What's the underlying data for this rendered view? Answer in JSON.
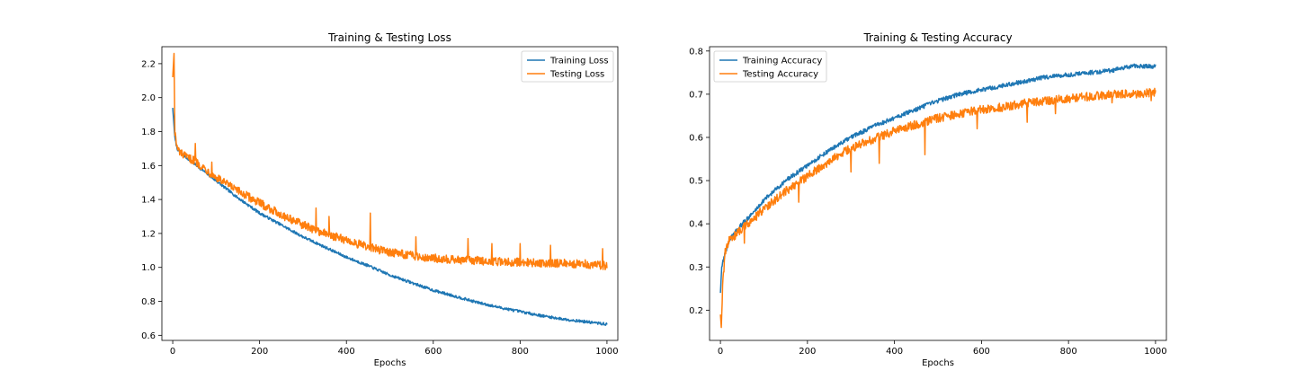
{
  "chart_data": [
    {
      "type": "line",
      "title": "Training & Testing Loss",
      "xlabel": "Epochs",
      "ylabel": "",
      "xlim": [
        -25,
        1025
      ],
      "ylim": [
        0.57,
        2.3
      ],
      "xticks": [
        0,
        200,
        400,
        600,
        800,
        1000
      ],
      "yticks": [
        0.6,
        0.8,
        1.0,
        1.2,
        1.4,
        1.6,
        1.8,
        2.0,
        2.2
      ],
      "tick_decimals": 1,
      "legend": "top-right",
      "grid": false,
      "series": [
        {
          "name": "Training Loss",
          "color": "#1f77b4",
          "x": [
            0,
            5,
            10,
            20,
            30,
            50,
            75,
            100,
            150,
            200,
            250,
            300,
            350,
            400,
            450,
            500,
            550,
            600,
            650,
            700,
            750,
            800,
            850,
            900,
            950,
            1000
          ],
          "y": [
            1.94,
            1.76,
            1.7,
            1.67,
            1.65,
            1.61,
            1.56,
            1.51,
            1.41,
            1.32,
            1.25,
            1.18,
            1.12,
            1.06,
            1.01,
            0.955,
            0.91,
            0.865,
            0.83,
            0.795,
            0.765,
            0.74,
            0.715,
            0.695,
            0.68,
            0.665
          ],
          "noise": 0.008
        },
        {
          "name": "Testing Loss",
          "color": "#ff7f0e",
          "x": [
            0,
            3,
            5,
            10,
            20,
            30,
            50,
            75,
            100,
            150,
            200,
            250,
            300,
            350,
            400,
            450,
            500,
            550,
            600,
            650,
            700,
            750,
            800,
            850,
            900,
            950,
            1000
          ],
          "y": [
            2.12,
            2.26,
            1.8,
            1.7,
            1.67,
            1.65,
            1.63,
            1.58,
            1.53,
            1.45,
            1.38,
            1.31,
            1.25,
            1.2,
            1.16,
            1.12,
            1.09,
            1.07,
            1.055,
            1.045,
            1.04,
            1.035,
            1.03,
            1.025,
            1.025,
            1.02,
            1.01
          ],
          "noise": 0.025,
          "spikes": [
            [
              52,
              1.73
            ],
            [
              90,
              1.62
            ],
            [
              330,
              1.35
            ],
            [
              360,
              1.3
            ],
            [
              455,
              1.32
            ],
            [
              560,
              1.18
            ],
            [
              680,
              1.17
            ],
            [
              735,
              1.14
            ],
            [
              800,
              1.14
            ],
            [
              870,
              1.13
            ],
            [
              990,
              1.11
            ]
          ]
        }
      ]
    },
    {
      "type": "line",
      "title": "Training & Testing Accuracy",
      "xlabel": "Epochs",
      "ylabel": "",
      "xlim": [
        -25,
        1025
      ],
      "ylim": [
        0.13,
        0.81
      ],
      "xticks": [
        0,
        200,
        400,
        600,
        800,
        1000
      ],
      "yticks": [
        0.2,
        0.3,
        0.4,
        0.5,
        0.6,
        0.7,
        0.8
      ],
      "tick_decimals": 1,
      "legend": "top-left",
      "grid": false,
      "series": [
        {
          "name": "Training Accuracy",
          "color": "#1f77b4",
          "x": [
            0,
            3,
            10,
            20,
            30,
            50,
            75,
            100,
            150,
            200,
            250,
            300,
            350,
            400,
            450,
            500,
            550,
            600,
            650,
            700,
            750,
            800,
            850,
            900,
            950,
            1000
          ],
          "y": [
            0.24,
            0.3,
            0.33,
            0.36,
            0.375,
            0.4,
            0.425,
            0.455,
            0.5,
            0.535,
            0.57,
            0.6,
            0.625,
            0.645,
            0.665,
            0.685,
            0.7,
            0.71,
            0.72,
            0.73,
            0.74,
            0.745,
            0.75,
            0.755,
            0.765,
            0.765
          ],
          "noise": 0.005
        },
        {
          "name": "Testing Accuracy",
          "color": "#ff7f0e",
          "x": [
            0,
            2,
            5,
            10,
            20,
            30,
            50,
            75,
            100,
            150,
            200,
            250,
            300,
            350,
            400,
            450,
            500,
            550,
            600,
            650,
            700,
            750,
            800,
            850,
            900,
            950,
            1000
          ],
          "y": [
            0.19,
            0.16,
            0.25,
            0.33,
            0.36,
            0.37,
            0.39,
            0.41,
            0.435,
            0.475,
            0.51,
            0.545,
            0.575,
            0.595,
            0.615,
            0.63,
            0.645,
            0.655,
            0.665,
            0.67,
            0.68,
            0.685,
            0.69,
            0.695,
            0.7,
            0.7,
            0.705
          ],
          "noise": 0.01,
          "spikes": [
            [
              55,
              0.355
            ],
            [
              180,
              0.45
            ],
            [
              300,
              0.52
            ],
            [
              365,
              0.54
            ],
            [
              470,
              0.56
            ],
            [
              590,
              0.62
            ],
            [
              705,
              0.635
            ],
            [
              770,
              0.655
            ],
            [
              900,
              0.68
            ],
            [
              990,
              0.685
            ]
          ]
        }
      ]
    }
  ]
}
